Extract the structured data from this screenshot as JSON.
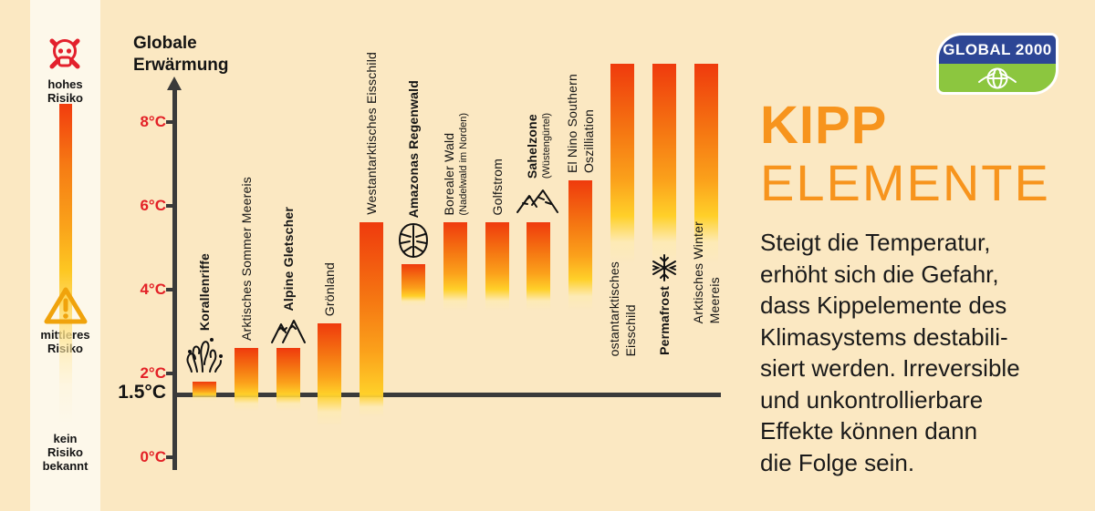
{
  "risk_scale": {
    "high_label": "hohes\nRisiko",
    "medium_label": "mittleres\nRisiko",
    "none_label": "kein\nRisiko\nbekannt",
    "high_icon": "skull-crossbones-icon",
    "medium_icon": "warning-triangle-icon",
    "gradient_colors": [
      "#f23c0e",
      "#faa21a",
      "#ffe07d"
    ]
  },
  "chart_data": {
    "type": "bar",
    "title": "Globale\nErwärmung",
    "ylabel": "Globale Erwärmung",
    "unit": "°C",
    "ylim": [
      0,
      9.5
    ],
    "yticks": [
      {
        "value": 8,
        "label": "8°C"
      },
      {
        "value": 6,
        "label": "6°C"
      },
      {
        "value": 4,
        "label": "4°C"
      },
      {
        "value": 2,
        "label": "2°C"
      },
      {
        "value": 0,
        "label": "0°C"
      }
    ],
    "baseline": {
      "value": 1.5,
      "label": "1.5°C"
    },
    "tick_color": "#e32026",
    "bar_gradient": [
      "#ef3a0d",
      "#f57712",
      "#fba11b",
      "#ffd029"
    ],
    "series": [
      {
        "label": "Korallenriffe",
        "bold": true,
        "icon": "coral-icon",
        "top": 1.8,
        "fade_bottom": 1.35
      },
      {
        "label": "Arktisches Sommer Meereis",
        "top": 2.6,
        "fade_bottom": 1.1
      },
      {
        "label": "Alpine Gletscher",
        "bold": true,
        "icon": "mountain-icon",
        "top": 2.6,
        "fade_bottom": 1.1
      },
      {
        "label": "Grönland",
        "top": 3.2,
        "fade_bottom": 0.75
      },
      {
        "label": "Westantarktisches Eisschild",
        "top": 5.6,
        "fade_bottom": 0.95
      },
      {
        "label": "Amazonas Regenwald",
        "bold": true,
        "icon": "monstera-leaf-icon",
        "top": 4.6,
        "fade_bottom": 3.6
      },
      {
        "label": "Borealer Wald",
        "sub": "(Nadelwald im Norden)",
        "top": 5.6,
        "fade_bottom": 3.5
      },
      {
        "label": "Golfstrom",
        "top": 5.6,
        "fade_bottom": 3.5
      },
      {
        "label": "Sahelzone",
        "sub": "(Wüstengürtel)",
        "bold": true,
        "icon": "desert-dunes-icon",
        "top": 5.6,
        "fade_bottom": 3.5
      },
      {
        "label": "El Nino Southern Oszilliation",
        "lines": [
          "El Nino Southern",
          "Oszilliation"
        ],
        "top": 6.6,
        "fade_bottom": 3.5
      },
      {
        "label": "ostantarktisches Eisschild",
        "lines": [
          "ostantarktisches",
          "Eisschild"
        ],
        "top": 9.4,
        "off_scale": true,
        "fade_bottom": 4.6,
        "label_below": true
      },
      {
        "label": "Permafrost",
        "bold": true,
        "icon": "snowflake-icon",
        "top": 9.4,
        "off_scale": true,
        "fade_bottom": 4.6,
        "label_below": true
      },
      {
        "label": "Arktisches Winter Meereis",
        "lines": [
          "Arktisches Winter",
          "Meereis"
        ],
        "top": 9.4,
        "off_scale": true,
        "fade_bottom": 4.6,
        "label_below": true
      }
    ]
  },
  "logo": {
    "text": "GLOBAL 2000",
    "icon": "globe-icon",
    "blue": "#2d4695",
    "green": "#8cc63f"
  },
  "headline": {
    "word1": "KIPP",
    "word2": "ELEMENTE",
    "color": "#f7941d"
  },
  "body_text": "Steigt die Temperatur,\nerhöht sich die Gefahr,\ndass Kippelemente des\nKlimasystems destabili-\nsiert werden. Irreversible\nund unkontrollierbare\nEffekte können dann\ndie Folge sein."
}
